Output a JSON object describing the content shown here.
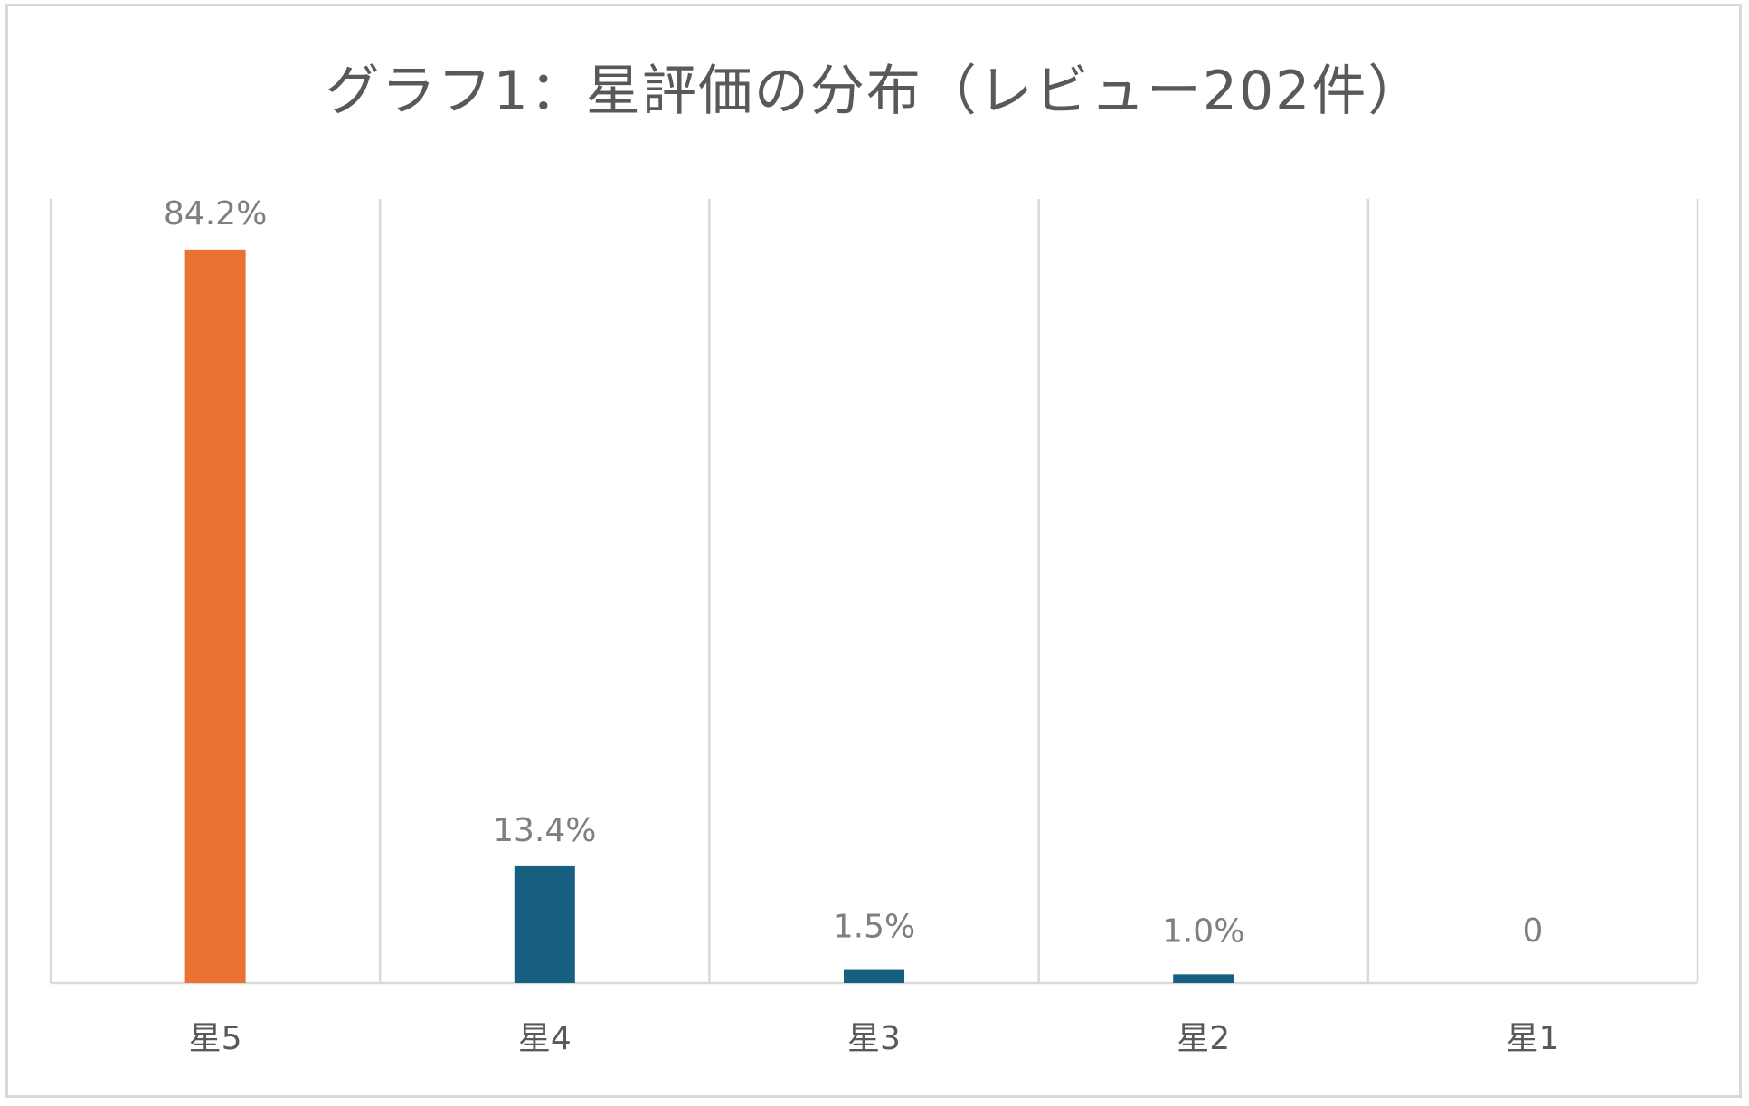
{
  "chart_data": {
    "type": "bar",
    "title": "グラフ1：星評価の分布（レビュー202件）",
    "categories": [
      "星5",
      "星4",
      "星3",
      "星2",
      "星1"
    ],
    "values": [
      84.2,
      13.4,
      1.5,
      1.0,
      0
    ],
    "data_labels": [
      "84.2%",
      "13.4%",
      "1.5%",
      "1.0%",
      "0"
    ],
    "unit": "%",
    "ylim": [
      0,
      90
    ],
    "xlabel": "",
    "ylabel": "",
    "grid": "vertical category separators",
    "legend": "none",
    "colors": [
      "#ea7233",
      "#165f80",
      "#165f80",
      "#165f80",
      "#165f80"
    ]
  }
}
